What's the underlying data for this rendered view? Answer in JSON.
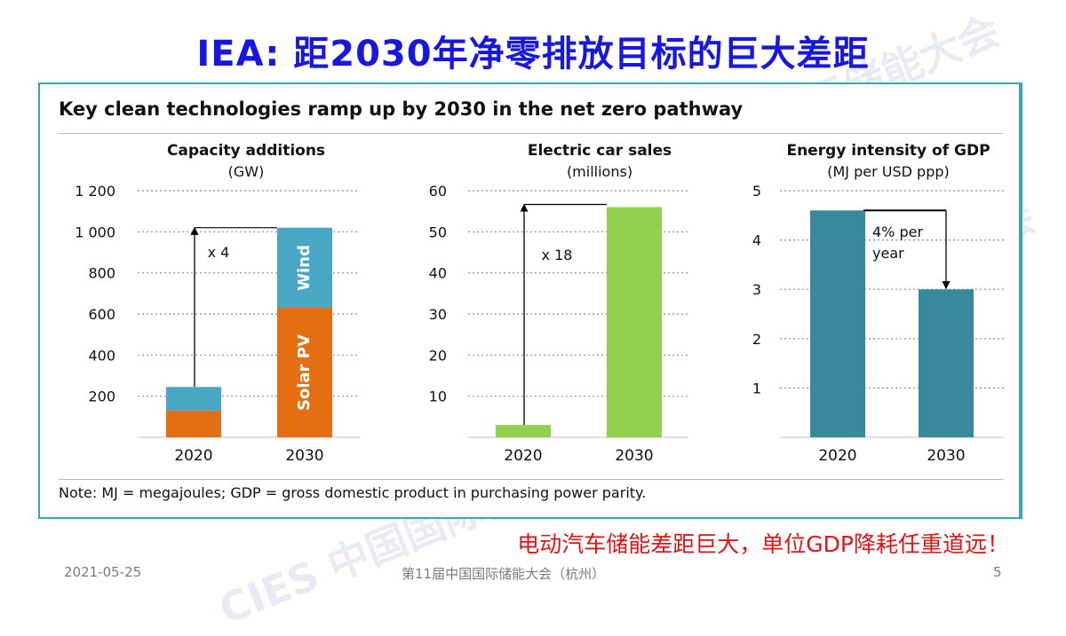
{
  "slide_title": "IEA: 距2030年净零排放目标的巨大差距",
  "panel_title": "Key clean technologies ramp up by 2030 in the net zero pathway",
  "note": "Note: MJ = megajoules; GDP = gross domestic product in purchasing power parity.",
  "red_note": "电动汽车储能差距巨大，单位GDP降耗任重道远！",
  "footer": {
    "date": "2021-05-25",
    "center": "第11届中国国际储能大会（杭州）",
    "page": "5"
  },
  "watermark": "CIES 中国国际储能大会",
  "colors": {
    "title": "#1717e0",
    "solar": "#e46f12",
    "wind": "#4aa7c4",
    "ev": "#92d050",
    "gdp": "#368a9c",
    "note_red": "#e01414"
  },
  "chart_data": [
    {
      "type": "bar",
      "title": "Capacity additions",
      "subtitle": "(GW)",
      "categories": [
        "2020",
        "2030"
      ],
      "stacked": true,
      "series": [
        {
          "name": "Solar PV",
          "values": [
            130,
            630
          ]
        },
        {
          "name": "Wind",
          "values": [
            115,
            390
          ]
        }
      ],
      "ylim": [
        0,
        1200
      ],
      "yticks": [
        200,
        400,
        600,
        800,
        1000,
        1200
      ],
      "ytick_labels": [
        "200",
        "400",
        "600",
        "800",
        "1 000",
        "1 200"
      ],
      "annotation": "x 4",
      "grid": true
    },
    {
      "type": "bar",
      "title": "Electric car sales",
      "subtitle": "(millions)",
      "categories": [
        "2020",
        "2030"
      ],
      "values": [
        3,
        56
      ],
      "ylim": [
        0,
        60
      ],
      "yticks": [
        10,
        20,
        30,
        40,
        50,
        60
      ],
      "ytick_labels": [
        "10",
        "20",
        "30",
        "40",
        "50",
        "60"
      ],
      "annotation": "x 18",
      "grid": true
    },
    {
      "type": "bar",
      "title": "Energy intensity of GDP",
      "subtitle": "(MJ per USD ppp)",
      "categories": [
        "2020",
        "2030"
      ],
      "values": [
        4.6,
        3.0
      ],
      "ylim": [
        0,
        5
      ],
      "yticks": [
        1,
        2,
        3,
        4,
        5
      ],
      "ytick_labels": [
        "1",
        "2",
        "3",
        "4",
        "5"
      ],
      "annotation": "4% per year",
      "grid": true
    }
  ]
}
